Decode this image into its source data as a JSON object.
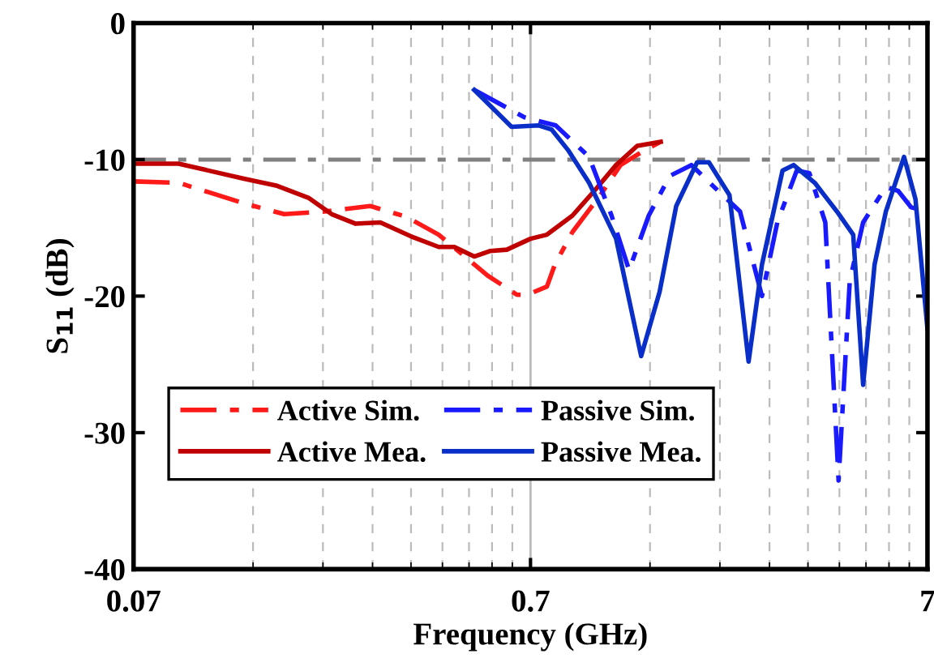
{
  "chart_data": {
    "type": "line",
    "xlabel": "Frequency (GHz)",
    "ylabel": "S$_{11}$ (dB)",
    "log": "x",
    "xlim": [
      0.07,
      7
    ],
    "xticks": [
      0.07,
      0.7,
      7
    ],
    "ylim": [
      -40,
      0
    ],
    "yticks": [
      0,
      -10,
      -20,
      -30,
      -40
    ],
    "grid": "x",
    "legend": "bottom left",
    "ref_lines": [
      {
        "axis": "y",
        "value": -10,
        "color": "#808080",
        "line_style": "dashdot"
      },
      {
        "axis": "x",
        "value": 0.7,
        "color": "#bbbbbb",
        "line_style": "solid"
      }
    ],
    "series": [
      {
        "name": "Active Sim.",
        "color": "#ff1a1a",
        "line_style": "dashdot",
        "x": [
          0.07,
          0.0909,
          0.1327,
          0.1678,
          0.212,
          0.276,
          0.341,
          0.411,
          0.546,
          0.647,
          0.687,
          0.77,
          0.806,
          0.893,
          1.05,
          1.18,
          1.36,
          1.49
        ],
        "values": [
          -11.6,
          -11.7,
          -13.2,
          -14.0,
          -13.8,
          -13.4,
          -14.2,
          -15.5,
          -18.5,
          -19.9,
          -19.9,
          -19.3,
          -17.7,
          -15.3,
          -12.6,
          -10.4,
          -9.3,
          -8.7
        ]
      },
      {
        "name": "Active Mea.",
        "color": "#c00000",
        "line_style": "solid",
        "x": [
          0.07,
          0.0909,
          0.1327,
          0.16,
          0.193,
          0.221,
          0.254,
          0.293,
          0.355,
          0.411,
          0.45,
          0.505,
          0.553,
          0.61,
          0.7,
          0.77,
          0.893,
          1.02,
          1.15,
          1.3,
          1.49
        ],
        "values": [
          -10.3,
          -10.3,
          -11.4,
          -11.9,
          -12.8,
          -14.0,
          -14.7,
          -14.6,
          -15.7,
          -16.4,
          -16.4,
          -17.1,
          -16.7,
          -16.6,
          -15.8,
          -15.5,
          -14.1,
          -12.2,
          -10.4,
          -9.0,
          -8.7
        ]
      },
      {
        "name": "Passive Sim.",
        "color": "#1a1aff",
        "line_style": "dashdot",
        "x": [
          0.505,
          0.675,
          0.81,
          0.983,
          1.12,
          1.24,
          1.39,
          1.57,
          1.78,
          2.08,
          2.36,
          2.68,
          2.93,
          3.28,
          3.53,
          3.87,
          4.18,
          4.46,
          4.82,
          5.5,
          5.91,
          6.37,
          7.0
        ],
        "values": [
          -4.9,
          -6.9,
          -7.5,
          -9.8,
          -14.1,
          -18.1,
          -14.1,
          -11.2,
          -10.4,
          -12.3,
          -13.8,
          -20.0,
          -14.6,
          -10.8,
          -11.0,
          -14.6,
          -33.5,
          -18.9,
          -14.6,
          -12.0,
          -12.3,
          -13.5,
          -13.8
        ]
      },
      {
        "name": "Passive Mea.",
        "color": "#0a2ec8",
        "line_style": "solid",
        "x": [
          0.505,
          0.627,
          0.735,
          0.791,
          0.87,
          0.983,
          1.15,
          1.33,
          1.48,
          1.63,
          1.84,
          1.97,
          2.22,
          2.48,
          2.68,
          3.02,
          3.22,
          3.64,
          4.14,
          4.55,
          4.82,
          5.15,
          5.5,
          6.11,
          6.53,
          7.0
        ],
        "values": [
          -4.9,
          -7.6,
          -7.5,
          -7.8,
          -9.3,
          -11.7,
          -15.8,
          -24.4,
          -19.7,
          -13.4,
          -10.2,
          -10.2,
          -12.6,
          -24.8,
          -17.7,
          -10.8,
          -10.4,
          -11.7,
          -13.8,
          -15.5,
          -26.5,
          -17.7,
          -13.8,
          -9.8,
          -12.9,
          -22.4
        ]
      }
    ]
  }
}
